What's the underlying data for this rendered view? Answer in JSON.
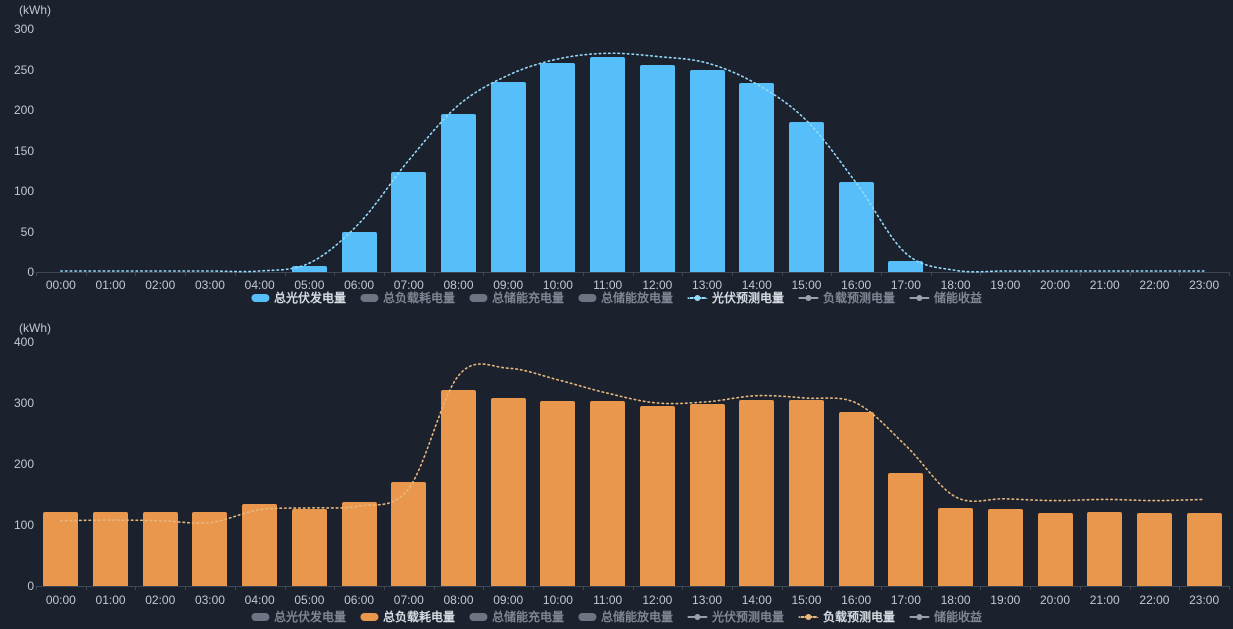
{
  "background_color": "#1b212d",
  "chart_data": [
    {
      "type": "bar",
      "title": "",
      "unit": "(kWh)",
      "xlabel": "",
      "ylabel": "(kWh)",
      "ylim": [
        0,
        300
      ],
      "y_ticks": [
        0,
        50,
        100,
        150,
        200,
        250,
        300
      ],
      "grid": false,
      "legend_position": "bottom",
      "categories": [
        "00:00",
        "01:00",
        "02:00",
        "03:00",
        "04:00",
        "05:00",
        "06:00",
        "07:00",
        "08:00",
        "09:00",
        "10:00",
        "11:00",
        "12:00",
        "13:00",
        "14:00",
        "15:00",
        "16:00",
        "17:00",
        "18:00",
        "19:00",
        "20:00",
        "21:00",
        "22:00",
        "23:00"
      ],
      "series": [
        {
          "name": "总光伏发电量",
          "type": "bar",
          "color": "#56bef8",
          "values": [
            0,
            0,
            0,
            0,
            0,
            7,
            49,
            123,
            195,
            235,
            258,
            265,
            256,
            249,
            233,
            185,
            111,
            14,
            0,
            0,
            0,
            0,
            0,
            0
          ]
        },
        {
          "name": "光伏预测电量",
          "type": "line",
          "line_style": "dotted",
          "color": "#96d9fa",
          "values": [
            0,
            0,
            0,
            0,
            1,
            11,
            60,
            138,
            206,
            243,
            263,
            270,
            266,
            258,
            232,
            187,
            110,
            23,
            2,
            1,
            1,
            1,
            1,
            1
          ]
        }
      ],
      "legend": [
        {
          "label": "总光伏发电量",
          "icon": "bar",
          "color": "#56bef8",
          "active": true
        },
        {
          "label": "总负载耗电量",
          "icon": "bar",
          "color": "#6d7584",
          "active": false
        },
        {
          "label": "总储能充电量",
          "icon": "bar",
          "color": "#6d7584",
          "active": false
        },
        {
          "label": "总储能放电量",
          "icon": "bar",
          "color": "#6d7584",
          "active": false
        },
        {
          "label": "光伏预测电量",
          "icon": "line",
          "line_style": "dotted",
          "color": "#96d9fa",
          "active": true
        },
        {
          "label": "负载预测电量",
          "icon": "line",
          "line_style": "solid",
          "color": "#9aa1ad",
          "active": false
        },
        {
          "label": "储能收益",
          "icon": "line",
          "line_style": "solid",
          "color": "#9aa1ad",
          "active": false
        }
      ]
    },
    {
      "type": "bar",
      "title": "",
      "unit": "(kWh)",
      "xlabel": "",
      "ylabel": "(kWh)",
      "ylim": [
        0,
        400
      ],
      "y_ticks": [
        0,
        100,
        200,
        300,
        400
      ],
      "grid": false,
      "legend_position": "bottom",
      "categories": [
        "00:00",
        "01:00",
        "02:00",
        "03:00",
        "04:00",
        "05:00",
        "06:00",
        "07:00",
        "08:00",
        "09:00",
        "10:00",
        "11:00",
        "12:00",
        "13:00",
        "14:00",
        "15:00",
        "16:00",
        "17:00",
        "18:00",
        "19:00",
        "20:00",
        "21:00",
        "22:00",
        "23:00"
      ],
      "series": [
        {
          "name": "总负载耗电量",
          "type": "bar",
          "color": "#e9974d",
          "values": [
            121,
            121,
            121,
            122,
            135,
            126,
            138,
            170,
            322,
            308,
            304,
            304,
            295,
            299,
            305,
            305,
            285,
            186,
            128,
            126,
            119,
            122,
            120,
            120
          ]
        },
        {
          "name": "负载预测电量",
          "type": "line",
          "line_style": "dotted",
          "color": "#e7b77e",
          "values": [
            107,
            108,
            107,
            104,
            125,
            128,
            131,
            160,
            345,
            357,
            338,
            316,
            300,
            302,
            312,
            308,
            300,
            230,
            146,
            143,
            140,
            142,
            140,
            142
          ]
        }
      ],
      "legend": [
        {
          "label": "总光伏发电量",
          "icon": "bar",
          "color": "#6d7584",
          "active": false
        },
        {
          "label": "总负载耗电量",
          "icon": "bar",
          "color": "#e9974d",
          "active": true
        },
        {
          "label": "总储能充电量",
          "icon": "bar",
          "color": "#6d7584",
          "active": false
        },
        {
          "label": "总储能放电量",
          "icon": "bar",
          "color": "#6d7584",
          "active": false
        },
        {
          "label": "光伏预测电量",
          "icon": "line",
          "line_style": "solid",
          "color": "#9aa1ad",
          "active": false
        },
        {
          "label": "负载预测电量",
          "icon": "line",
          "line_style": "dotted",
          "color": "#e7b77e",
          "active": true
        },
        {
          "label": "储能收益",
          "icon": "line",
          "line_style": "solid",
          "color": "#9aa1ad",
          "active": false
        }
      ]
    }
  ],
  "text_colors": {
    "axis_label": "#c2c8d2",
    "legend_active": "#d6dbe2",
    "legend_inactive": "#7e8693"
  }
}
